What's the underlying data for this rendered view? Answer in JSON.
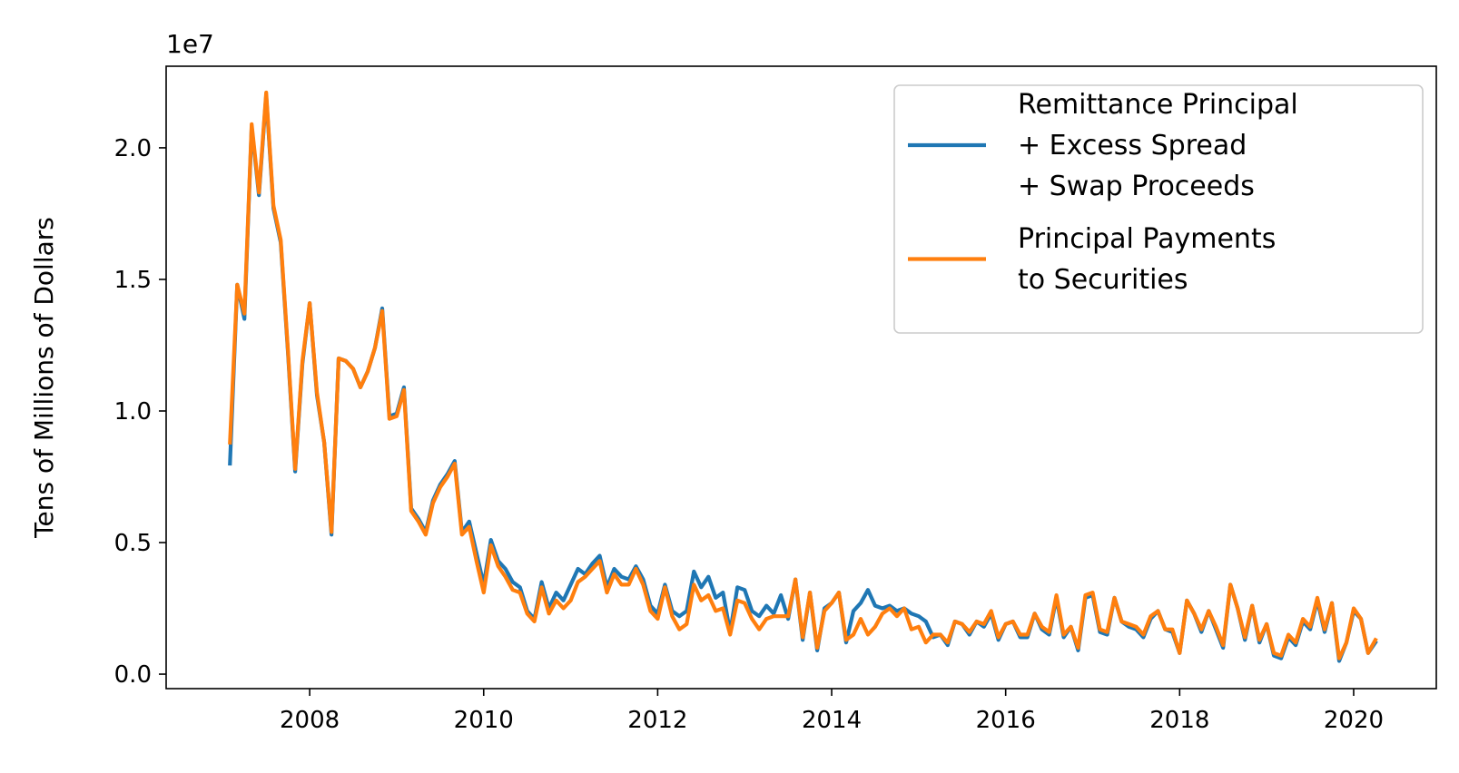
{
  "chart_data": {
    "type": "line",
    "ylabel": "Tens of Millions of Dollars",
    "offset_text": "1e7",
    "xlim": [
      2006.35,
      2020.95
    ],
    "ylim": [
      -0.055,
      2.31
    ],
    "x_ticks": [
      2008,
      2010,
      2012,
      2014,
      2016,
      2018,
      2020
    ],
    "x_tick_labels": [
      "2008",
      "2010",
      "2012",
      "2014",
      "2016",
      "2018",
      "2020"
    ],
    "y_ticks": [
      0.0,
      0.5,
      1.0,
      1.5,
      2.0
    ],
    "y_tick_labels": [
      "0.0",
      "0.5",
      "1.0",
      "1.5",
      "2.0"
    ],
    "grid": false,
    "legend_position": "top-right",
    "x": [
      2007.0833,
      2007.1667,
      2007.25,
      2007.3333,
      2007.4167,
      2007.5,
      2007.5833,
      2007.6667,
      2007.75,
      2007.8333,
      2007.9167,
      2008.0,
      2008.0833,
      2008.1667,
      2008.25,
      2008.3333,
      2008.4167,
      2008.5,
      2008.5833,
      2008.6667,
      2008.75,
      2008.8333,
      2008.9167,
      2009.0,
      2009.0833,
      2009.1667,
      2009.25,
      2009.3333,
      2009.4167,
      2009.5,
      2009.5833,
      2009.6667,
      2009.75,
      2009.8333,
      2009.9167,
      2010.0,
      2010.0833,
      2010.1667,
      2010.25,
      2010.3333,
      2010.4167,
      2010.5,
      2010.5833,
      2010.6667,
      2010.75,
      2010.8333,
      2010.9167,
      2011.0,
      2011.0833,
      2011.1667,
      2011.25,
      2011.3333,
      2011.4167,
      2011.5,
      2011.5833,
      2011.6667,
      2011.75,
      2011.8333,
      2011.9167,
      2012.0,
      2012.0833,
      2012.1667,
      2012.25,
      2012.3333,
      2012.4167,
      2012.5,
      2012.5833,
      2012.6667,
      2012.75,
      2012.8333,
      2012.9167,
      2013.0,
      2013.0833,
      2013.1667,
      2013.25,
      2013.3333,
      2013.4167,
      2013.5,
      2013.5833,
      2013.6667,
      2013.75,
      2013.8333,
      2013.9167,
      2014.0,
      2014.0833,
      2014.1667,
      2014.25,
      2014.3333,
      2014.4167,
      2014.5,
      2014.5833,
      2014.6667,
      2014.75,
      2014.8333,
      2014.9167,
      2015.0,
      2015.0833,
      2015.1667,
      2015.25,
      2015.3333,
      2015.4167,
      2015.5,
      2015.5833,
      2015.6667,
      2015.75,
      2015.8333,
      2015.9167,
      2016.0,
      2016.0833,
      2016.1667,
      2016.25,
      2016.3333,
      2016.4167,
      2016.5,
      2016.5833,
      2016.6667,
      2016.75,
      2016.8333,
      2016.9167,
      2017.0,
      2017.0833,
      2017.1667,
      2017.25,
      2017.3333,
      2017.4167,
      2017.5,
      2017.5833,
      2017.6667,
      2017.75,
      2017.8333,
      2017.9167,
      2018.0,
      2018.0833,
      2018.1667,
      2018.25,
      2018.3333,
      2018.4167,
      2018.5,
      2018.5833,
      2018.6667,
      2018.75,
      2018.8333,
      2018.9167,
      2019.0,
      2019.0833,
      2019.1667,
      2019.25,
      2019.3333,
      2019.4167,
      2019.5,
      2019.5833,
      2019.6667,
      2019.75,
      2019.8333,
      2019.9167,
      2020.0,
      2020.0833,
      2020.1667,
      2020.25
    ],
    "series": [
      {
        "name": "Remittance Principal\n+ Excess Spread\n+ Swap Proceeds",
        "color": "#1f77b4",
        "values": [
          0.8,
          1.48,
          1.35,
          2.08,
          1.82,
          2.2,
          1.77,
          1.64,
          1.22,
          0.77,
          1.18,
          1.41,
          1.06,
          0.88,
          0.53,
          1.2,
          1.19,
          1.16,
          1.09,
          1.15,
          1.24,
          1.39,
          0.98,
          0.99,
          1.09,
          0.63,
          0.59,
          0.54,
          0.66,
          0.72,
          0.76,
          0.81,
          0.54,
          0.58,
          0.46,
          0.34,
          0.51,
          0.43,
          0.4,
          0.35,
          0.33,
          0.24,
          0.21,
          0.35,
          0.25,
          0.31,
          0.28,
          0.34,
          0.4,
          0.38,
          0.42,
          0.45,
          0.33,
          0.4,
          0.37,
          0.36,
          0.41,
          0.36,
          0.26,
          0.23,
          0.34,
          0.24,
          0.22,
          0.24,
          0.39,
          0.33,
          0.37,
          0.29,
          0.31,
          0.16,
          0.33,
          0.32,
          0.24,
          0.22,
          0.26,
          0.23,
          0.3,
          0.21,
          0.36,
          0.13,
          0.31,
          0.09,
          0.25,
          0.27,
          0.31,
          0.12,
          0.24,
          0.27,
          0.32,
          0.26,
          0.25,
          0.26,
          0.24,
          0.25,
          0.23,
          0.22,
          0.2,
          0.14,
          0.15,
          0.11,
          0.2,
          0.19,
          0.15,
          0.2,
          0.18,
          0.23,
          0.13,
          0.19,
          0.2,
          0.14,
          0.14,
          0.23,
          0.17,
          0.15,
          0.29,
          0.14,
          0.18,
          0.09,
          0.29,
          0.3,
          0.16,
          0.15,
          0.29,
          0.2,
          0.18,
          0.17,
          0.14,
          0.21,
          0.24,
          0.17,
          0.16,
          0.08,
          0.28,
          0.23,
          0.16,
          0.24,
          0.17,
          0.1,
          0.34,
          0.25,
          0.13,
          0.26,
          0.12,
          0.19,
          0.07,
          0.06,
          0.14,
          0.11,
          0.2,
          0.17,
          0.28,
          0.16,
          0.27,
          0.05,
          0.12,
          0.24,
          0.21,
          0.08,
          0.12
        ]
      },
      {
        "name": "Principal Payments\nto Securities",
        "color": "#ff7f0e",
        "values": [
          0.88,
          1.48,
          1.37,
          2.09,
          1.83,
          2.21,
          1.78,
          1.65,
          1.23,
          0.78,
          1.19,
          1.41,
          1.07,
          0.88,
          0.54,
          1.2,
          1.19,
          1.16,
          1.09,
          1.15,
          1.24,
          1.38,
          0.97,
          0.98,
          1.08,
          0.62,
          0.58,
          0.53,
          0.65,
          0.71,
          0.75,
          0.8,
          0.53,
          0.56,
          0.43,
          0.31,
          0.49,
          0.41,
          0.37,
          0.32,
          0.31,
          0.23,
          0.2,
          0.33,
          0.23,
          0.28,
          0.25,
          0.28,
          0.35,
          0.37,
          0.4,
          0.43,
          0.31,
          0.38,
          0.34,
          0.34,
          0.4,
          0.34,
          0.24,
          0.21,
          0.33,
          0.22,
          0.17,
          0.19,
          0.34,
          0.28,
          0.3,
          0.24,
          0.25,
          0.15,
          0.28,
          0.27,
          0.21,
          0.17,
          0.21,
          0.22,
          0.22,
          0.22,
          0.36,
          0.14,
          0.31,
          0.1,
          0.24,
          0.27,
          0.31,
          0.13,
          0.15,
          0.21,
          0.15,
          0.18,
          0.23,
          0.25,
          0.22,
          0.25,
          0.17,
          0.18,
          0.12,
          0.15,
          0.15,
          0.12,
          0.2,
          0.19,
          0.16,
          0.2,
          0.19,
          0.24,
          0.14,
          0.19,
          0.2,
          0.15,
          0.15,
          0.23,
          0.18,
          0.16,
          0.3,
          0.15,
          0.18,
          0.1,
          0.3,
          0.31,
          0.17,
          0.16,
          0.29,
          0.2,
          0.19,
          0.18,
          0.15,
          0.22,
          0.24,
          0.17,
          0.17,
          0.08,
          0.28,
          0.23,
          0.17,
          0.24,
          0.18,
          0.11,
          0.34,
          0.25,
          0.14,
          0.26,
          0.13,
          0.19,
          0.08,
          0.07,
          0.15,
          0.12,
          0.21,
          0.18,
          0.29,
          0.17,
          0.27,
          0.06,
          0.12,
          0.25,
          0.21,
          0.08,
          0.13
        ]
      }
    ]
  }
}
